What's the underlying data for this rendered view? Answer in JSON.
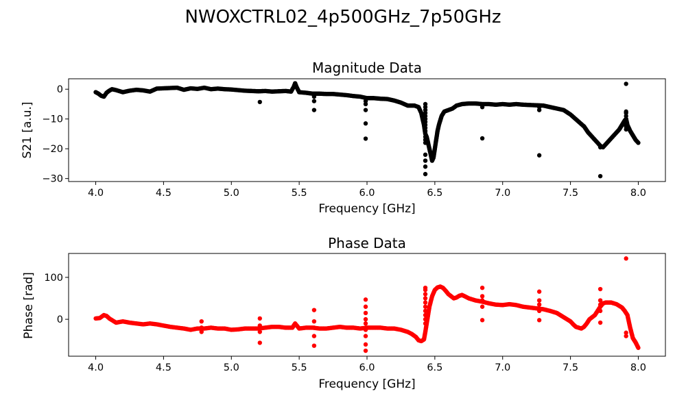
{
  "figure": {
    "suptitle": "NWOXCTRL02_4p500GHz_7p50GHz"
  },
  "chart_data": [
    {
      "type": "scatter",
      "title": "Magnitude Data",
      "xlabel": "Frequency [GHz]",
      "ylabel": "S21 [a.u.]",
      "xlim": [
        3.8,
        8.2
      ],
      "ylim": [
        -31,
        3.5
      ],
      "xticks": [
        "4.0",
        "4.5",
        "5.0",
        "5.5",
        "6.0",
        "6.5",
        "7.0",
        "7.5",
        "8.0"
      ],
      "yticks": [
        "0",
        "−10",
        "−20",
        "−30"
      ],
      "ytick_values": [
        0,
        -10,
        -20,
        -30
      ],
      "color": "#000000",
      "grid": false,
      "series": [
        {
          "x": [
            4.0,
            4.02,
            4.04,
            4.06,
            4.08,
            4.1,
            4.12,
            4.15,
            4.2,
            4.25,
            4.3,
            4.35,
            4.4,
            4.45,
            4.5,
            4.55,
            4.6,
            4.65,
            4.7,
            4.75,
            4.8,
            4.85,
            4.9,
            4.95,
            5.0,
            5.05,
            5.1,
            5.15,
            5.2,
            5.25,
            5.3,
            5.35,
            5.4,
            5.44,
            5.46,
            5.47,
            5.48,
            5.5,
            5.55,
            5.6,
            5.65,
            5.7,
            5.75,
            5.8,
            5.85,
            5.9,
            5.95,
            6.0,
            6.05,
            6.1,
            6.15,
            6.2,
            6.25,
            6.3,
            6.35,
            6.38,
            6.4,
            6.42,
            6.43,
            6.44,
            6.45,
            6.46,
            6.47,
            6.48,
            6.49,
            6.5,
            6.51,
            6.52,
            6.53,
            6.55,
            6.57,
            6.6,
            6.63,
            6.66,
            6.7,
            6.75,
            6.8,
            6.85,
            6.9,
            6.95,
            7.0,
            7.05,
            7.1,
            7.15,
            7.2,
            7.25,
            7.3,
            7.35,
            7.4,
            7.45,
            7.5,
            7.55,
            7.6,
            7.63,
            7.66,
            7.68,
            7.7,
            7.72,
            7.74,
            7.76,
            7.78,
            7.8,
            7.82,
            7.84,
            7.86,
            7.88,
            7.9,
            7.91,
            7.92,
            7.94,
            7.96,
            7.98,
            8.0
          ],
          "y": [
            -1.0,
            -1.5,
            -2.2,
            -2.5,
            -1.2,
            -0.5,
            0.0,
            -0.3,
            -1.0,
            -0.5,
            -0.2,
            -0.4,
            -0.8,
            0.2,
            0.3,
            0.4,
            0.5,
            -0.2,
            0.3,
            0.1,
            0.5,
            0.0,
            0.2,
            0.0,
            -0.1,
            -0.3,
            -0.5,
            -0.6,
            -0.7,
            -0.6,
            -0.8,
            -0.7,
            -0.6,
            -0.8,
            0.8,
            2.0,
            0.8,
            -1.0,
            -1.2,
            -1.5,
            -1.5,
            -1.6,
            -1.6,
            -1.8,
            -2.0,
            -2.3,
            -2.5,
            -3.0,
            -3.0,
            -3.2,
            -3.3,
            -3.8,
            -4.5,
            -5.5,
            -5.5,
            -6.0,
            -8.0,
            -12.0,
            -15.0,
            -16.0,
            -18.0,
            -20.0,
            -22.0,
            -24.0,
            -23.0,
            -20.0,
            -17.0,
            -14.0,
            -12.0,
            -9.0,
            -7.5,
            -7.0,
            -6.5,
            -5.5,
            -5.0,
            -4.8,
            -4.8,
            -5.0,
            -5.0,
            -5.2,
            -5.0,
            -5.2,
            -5.0,
            -5.2,
            -5.3,
            -5.4,
            -5.5,
            -6.0,
            -6.5,
            -7.0,
            -8.5,
            -10.5,
            -12.5,
            -14.5,
            -16.0,
            -17.0,
            -18.0,
            -19.0,
            -19.5,
            -18.5,
            -17.5,
            -16.5,
            -15.5,
            -14.5,
            -13.5,
            -12.0,
            -10.5,
            -10.0,
            -12.0,
            -14.0,
            -15.5,
            -17.0,
            -18.0
          ]
        },
        {
          "x": [
            5.21,
            5.61,
            5.61,
            5.61,
            5.99,
            5.99,
            5.99,
            5.99,
            5.99,
            6.43,
            6.43,
            6.43,
            6.43,
            6.43,
            6.43,
            6.43,
            6.43,
            6.43,
            6.43,
            6.43,
            6.43,
            6.43,
            6.43,
            6.43,
            6.43,
            6.43,
            6.43,
            6.85,
            6.85,
            7.27,
            7.27,
            7.27,
            7.72,
            7.72,
            7.91,
            7.91,
            7.91,
            7.91,
            7.91,
            7.91,
            7.91,
            7.91,
            7.91,
            7.91
          ],
          "y": [
            -4.3,
            -7.0,
            -4.0,
            -2.5,
            -16.6,
            -11.5,
            -7.0,
            -5.0,
            -4.0,
            -5.0,
            -6.0,
            -7.0,
            -8.0,
            -9.0,
            -10.0,
            -11.0,
            -12.0,
            -13.0,
            -14.0,
            -15.0,
            -16.0,
            -17.0,
            -18.0,
            -22.0,
            -24.0,
            -26.0,
            -28.5,
            -16.5,
            -6.0,
            -22.2,
            -7.0,
            -6.0,
            -29.2,
            -19.5,
            1.8,
            -7.5,
            -8.0,
            -9.0,
            -10.0,
            -10.5,
            -11.0,
            -11.5,
            -12.5,
            -13.5
          ]
        }
      ]
    },
    {
      "type": "scatter",
      "title": "Phase Data",
      "xlabel": "Frequency [GHz]",
      "ylabel": "Phase [rad]",
      "xlim": [
        3.8,
        8.2
      ],
      "ylim": [
        -88,
        157
      ],
      "xticks": [
        "4.0",
        "4.5",
        "5.0",
        "5.5",
        "6.0",
        "6.5",
        "7.0",
        "7.5",
        "8.0"
      ],
      "yticks": [
        "100",
        "0"
      ],
      "ytick_values": [
        100,
        0
      ],
      "color": "#ff0000",
      "grid": false,
      "series": [
        {
          "x": [
            4.0,
            4.03,
            4.06,
            4.08,
            4.1,
            4.12,
            4.15,
            4.2,
            4.25,
            4.3,
            4.35,
            4.4,
            4.45,
            4.5,
            4.55,
            4.6,
            4.65,
            4.7,
            4.75,
            4.8,
            4.85,
            4.9,
            4.95,
            5.0,
            5.05,
            5.1,
            5.15,
            5.2,
            5.25,
            5.3,
            5.35,
            5.4,
            5.45,
            5.47,
            5.5,
            5.55,
            5.6,
            5.65,
            5.7,
            5.75,
            5.8,
            5.85,
            5.9,
            5.95,
            6.0,
            6.05,
            6.1,
            6.15,
            6.2,
            6.25,
            6.3,
            6.33,
            6.36,
            6.38,
            6.4,
            6.42,
            6.43,
            6.44,
            6.45,
            6.46,
            6.48,
            6.5,
            6.52,
            6.54,
            6.56,
            6.58,
            6.6,
            6.62,
            6.64,
            6.66,
            6.68,
            6.7,
            6.72,
            6.75,
            6.8,
            6.85,
            6.9,
            6.95,
            7.0,
            7.05,
            7.1,
            7.15,
            7.2,
            7.25,
            7.3,
            7.35,
            7.4,
            7.45,
            7.5,
            7.52,
            7.54,
            7.56,
            7.58,
            7.6,
            7.62,
            7.64,
            7.66,
            7.68,
            7.7,
            7.72,
            7.74,
            7.76,
            7.78,
            7.8,
            7.82,
            7.84,
            7.86,
            7.88,
            7.9,
            7.92,
            7.94,
            7.96,
            7.98,
            8.0
          ],
          "y": [
            2,
            3,
            10,
            8,
            2,
            -2,
            -8,
            -5,
            -8,
            -10,
            -12,
            -10,
            -12,
            -15,
            -18,
            -20,
            -22,
            -25,
            -22,
            -22,
            -20,
            -22,
            -22,
            -25,
            -24,
            -22,
            -22,
            -22,
            -20,
            -18,
            -18,
            -20,
            -20,
            -10,
            -22,
            -20,
            -20,
            -22,
            -22,
            -20,
            -18,
            -20,
            -20,
            -22,
            -20,
            -20,
            -20,
            -22,
            -22,
            -25,
            -30,
            -35,
            -42,
            -50,
            -52,
            -48,
            -30,
            -10,
            10,
            30,
            55,
            70,
            76,
            78,
            75,
            68,
            60,
            55,
            50,
            52,
            56,
            58,
            55,
            50,
            45,
            42,
            38,
            35,
            34,
            36,
            34,
            30,
            28,
            26,
            24,
            20,
            15,
            5,
            -5,
            -12,
            -18,
            -20,
            -22,
            -18,
            -10,
            0,
            5,
            10,
            20,
            30,
            38,
            40,
            40,
            40,
            38,
            36,
            32,
            28,
            20,
            10,
            -20,
            -45,
            -55,
            -68
          ]
        },
        {
          "x": [
            4.78,
            4.78,
            4.78,
            5.21,
            5.21,
            5.21,
            5.21,
            5.61,
            5.61,
            5.61,
            5.61,
            5.61,
            5.99,
            5.99,
            5.99,
            5.99,
            5.99,
            5.99,
            5.99,
            5.99,
            5.99,
            6.43,
            6.43,
            6.43,
            6.43,
            6.43,
            6.43,
            6.43,
            6.43,
            6.43,
            6.43,
            6.85,
            6.85,
            6.85,
            6.85,
            6.85,
            7.27,
            7.27,
            7.27,
            7.27,
            7.27,
            7.72,
            7.72,
            7.72,
            7.72,
            7.72,
            7.91,
            7.91,
            7.91
          ],
          "y": [
            -5,
            -20,
            -30,
            2,
            -15,
            -30,
            -56,
            22,
            -5,
            -20,
            -40,
            -63,
            47,
            30,
            15,
            0,
            -10,
            -25,
            -40,
            -60,
            -75,
            75,
            70,
            60,
            50,
            40,
            30,
            20,
            10,
            0,
            -10,
            75,
            55,
            45,
            30,
            -2,
            66,
            45,
            35,
            20,
            -2,
            72,
            45,
            35,
            20,
            -8,
            145,
            -32,
            -40
          ]
        }
      ]
    }
  ]
}
